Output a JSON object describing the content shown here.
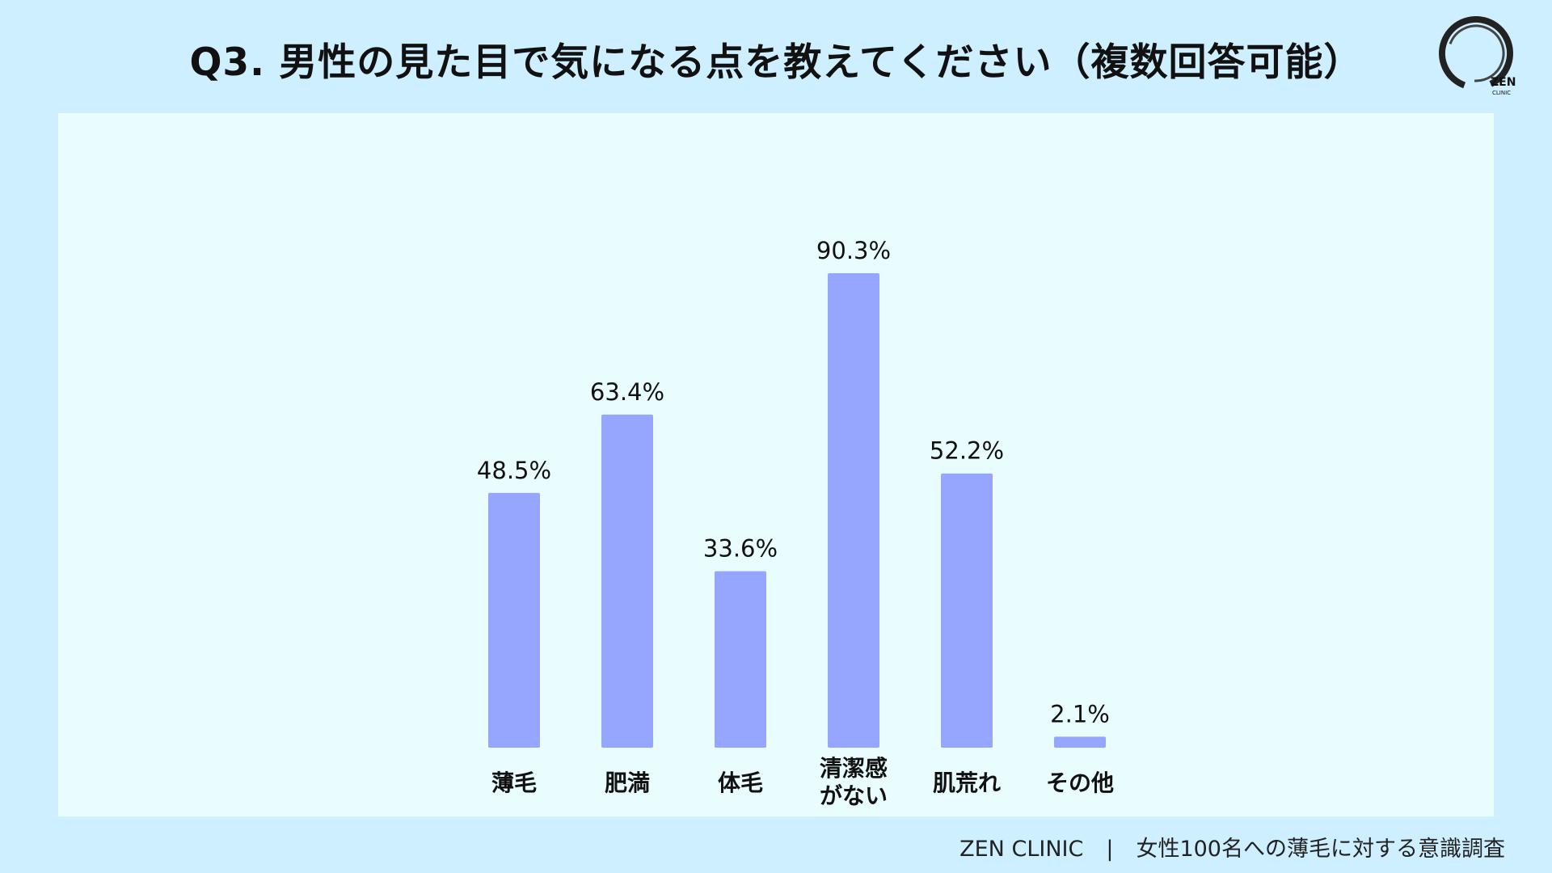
{
  "header": {
    "title": "Q3. 男性の見た目で気になる点を教えてください（複数回答可能）"
  },
  "logo": {
    "brand": "ZEN",
    "sub": "CLINIC",
    "icon": "circle-brush-logo-icon"
  },
  "footer": {
    "org": "ZEN CLINIC",
    "separator": "|",
    "survey": "女性100名への薄毛に対する意識調査"
  },
  "colors": {
    "background": "#cdefff",
    "panel": "#e9fdff",
    "bar": "#96a6ff",
    "text": "#111111"
  },
  "chart_data": {
    "type": "bar",
    "categories": [
      "薄毛",
      "肥満",
      "体毛",
      "清潔感がない",
      "肌荒れ",
      "その他"
    ],
    "category_lines": [
      [
        "薄毛"
      ],
      [
        "肥満"
      ],
      [
        "体毛"
      ],
      [
        "清潔感",
        "がない"
      ],
      [
        "肌荒れ"
      ],
      [
        "その他"
      ]
    ],
    "values": [
      48.5,
      63.4,
      33.6,
      90.3,
      52.2,
      2.1
    ],
    "value_labels": [
      "48.5%",
      "63.4%",
      "33.6%",
      "90.3%",
      "52.2%",
      "2.1%"
    ],
    "unit": "%",
    "ylim": [
      0,
      100
    ],
    "grid": false,
    "legend": "none"
  }
}
